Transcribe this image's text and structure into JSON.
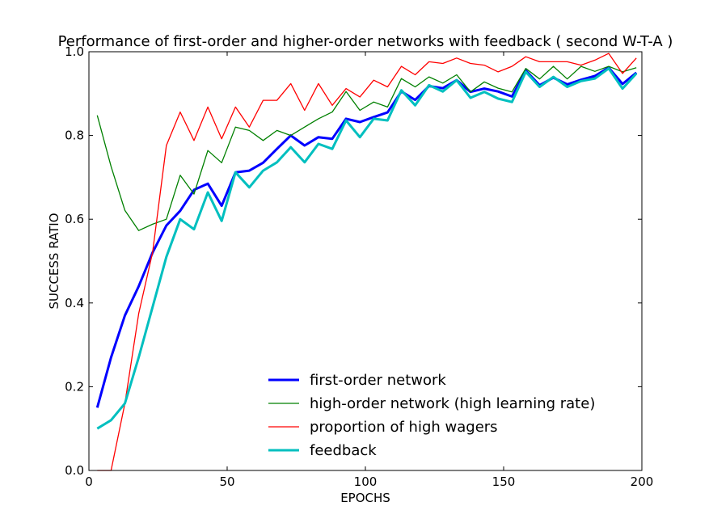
{
  "chart_data": {
    "type": "line",
    "title": "Performance of first-order and higher-order networks with feedback ( second W-T-A )",
    "xlabel": "EPOCHS",
    "ylabel": "SUCCESS RATIO",
    "xlim": [
      0,
      200
    ],
    "ylim": [
      0.0,
      1.0
    ],
    "xticks": [
      0,
      50,
      100,
      150,
      200
    ],
    "xtick_labels": [
      "0",
      "50",
      "100",
      "150",
      "200"
    ],
    "yticks": [
      0.0,
      0.2,
      0.4,
      0.6,
      0.8,
      1.0
    ],
    "ytick_labels": [
      "0.0",
      "0.2",
      "0.4",
      "0.6",
      "0.8",
      "1.0"
    ],
    "grid": false,
    "legend_position": "lower-center",
    "x": [
      3,
      8,
      13,
      18,
      23,
      28,
      33,
      38,
      43,
      48,
      53,
      58,
      63,
      68,
      73,
      78,
      83,
      88,
      93,
      98,
      103,
      108,
      113,
      118,
      123,
      128,
      133,
      138,
      143,
      148,
      153,
      158,
      163,
      168,
      173,
      178,
      183,
      188,
      193,
      198
    ],
    "series": [
      {
        "name": "first-order network",
        "color": "#0000ff",
        "width": 3,
        "values": [
          0.15,
          0.27,
          0.37,
          0.44,
          0.52,
          0.585,
          0.62,
          0.67,
          0.685,
          0.632,
          0.712,
          0.716,
          0.735,
          0.768,
          0.8,
          0.776,
          0.796,
          0.792,
          0.84,
          0.832,
          0.844,
          0.855,
          0.905,
          0.885,
          0.918,
          0.913,
          0.932,
          0.904,
          0.912,
          0.905,
          0.893,
          0.955,
          0.92,
          0.938,
          0.922,
          0.933,
          0.942,
          0.962,
          0.923,
          0.95
        ]
      },
      {
        "name": "high-order network (high learning rate)",
        "color": "#008000",
        "width": 1.3,
        "values": [
          0.848,
          0.726,
          0.621,
          0.573,
          0.588,
          0.6,
          0.705,
          0.66,
          0.764,
          0.735,
          0.82,
          0.812,
          0.788,
          0.812,
          0.8,
          0.82,
          0.84,
          0.856,
          0.905,
          0.86,
          0.88,
          0.868,
          0.936,
          0.916,
          0.94,
          0.925,
          0.945,
          0.904,
          0.928,
          0.913,
          0.904,
          0.96,
          0.935,
          0.965,
          0.935,
          0.965,
          0.953,
          0.965,
          0.952,
          0.962
        ]
      },
      {
        "name": "proportion of high wagers",
        "color": "#ff0000",
        "width": 1.3,
        "values": [
          0.0,
          0.0,
          0.16,
          0.375,
          0.52,
          0.776,
          0.856,
          0.788,
          0.868,
          0.792,
          0.868,
          0.82,
          0.884,
          0.884,
          0.924,
          0.86,
          0.924,
          0.872,
          0.912,
          0.892,
          0.932,
          0.916,
          0.965,
          0.945,
          0.976,
          0.972,
          0.985,
          0.972,
          0.968,
          0.952,
          0.965,
          0.988,
          0.976,
          0.976,
          0.976,
          0.968,
          0.98,
          0.996,
          0.948,
          0.985
        ]
      },
      {
        "name": "feedback",
        "color": "#00bfbf",
        "width": 3,
        "values": [
          0.1,
          0.12,
          0.16,
          0.27,
          0.39,
          0.51,
          0.6,
          0.576,
          0.664,
          0.596,
          0.712,
          0.676,
          0.716,
          0.736,
          0.772,
          0.736,
          0.78,
          0.768,
          0.836,
          0.796,
          0.84,
          0.836,
          0.908,
          0.872,
          0.92,
          0.905,
          0.932,
          0.89,
          0.904,
          0.888,
          0.88,
          0.952,
          0.916,
          0.94,
          0.916,
          0.93,
          0.936,
          0.96,
          0.912,
          0.948
        ]
      }
    ]
  }
}
